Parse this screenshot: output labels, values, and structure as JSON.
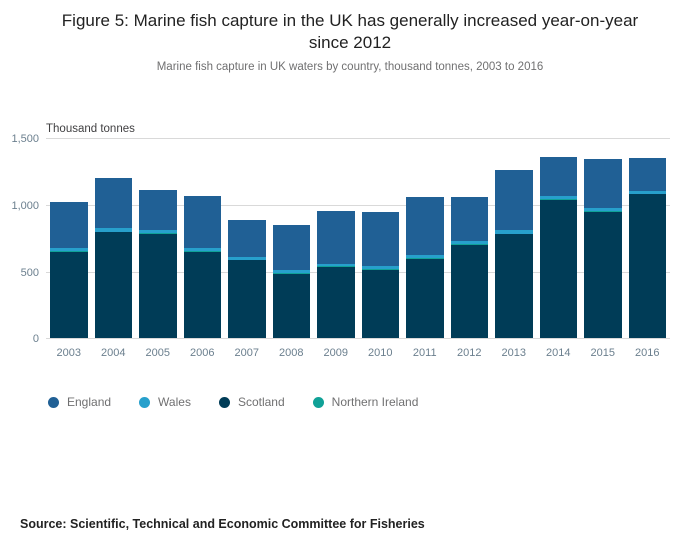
{
  "title": "Figure 5: Marine fish capture in the UK has generally increased year-on-year since 2012",
  "subtitle": "Marine fish capture in UK waters by country, thousand tonnes, 2003 to 2016",
  "source": "Source: Scientific, Technical and Economic Committee for Fisheries",
  "chart_data": {
    "type": "bar",
    "stacked": true,
    "title": "Figure 5: Marine fish capture in the UK has generally increased year-on-year since 2012",
    "subtitle": "Marine fish capture in UK waters by country, thousand tonnes, 2003 to 2016",
    "unit_label": "Thousand tonnes",
    "xlabel": "",
    "ylabel": "Thousand tonnes",
    "ylim": [
      0,
      1500
    ],
    "yticks": [
      "1,500",
      "1,000",
      "500",
      "0"
    ],
    "ytick_values": [
      1500,
      1000,
      500,
      0
    ],
    "grid": true,
    "legend_position": "bottom",
    "categories": [
      "2003",
      "2004",
      "2005",
      "2006",
      "2007",
      "2008",
      "2009",
      "2010",
      "2011",
      "2012",
      "2013",
      "2014",
      "2015",
      "2016"
    ],
    "series": [
      {
        "name": "Scotland",
        "color": "#003c57",
        "values": [
          650,
          795,
          785,
          650,
          585,
          485,
          535,
          515,
          595,
          700,
          780,
          1040,
          950,
          1080
        ]
      },
      {
        "name": "Northern Ireland",
        "color": "#10a197",
        "values": [
          5,
          5,
          5,
          5,
          5,
          5,
          5,
          5,
          5,
          5,
          5,
          5,
          5,
          5
        ]
      },
      {
        "name": "Wales",
        "color": "#27a0cc",
        "values": [
          20,
          25,
          20,
          20,
          20,
          20,
          20,
          20,
          25,
          25,
          30,
          20,
          20,
          20
        ]
      },
      {
        "name": "England",
        "color": "#206095",
        "values": [
          350,
          380,
          305,
          390,
          275,
          340,
          395,
          405,
          435,
          330,
          445,
          295,
          370,
          250
        ]
      }
    ],
    "legend": [
      {
        "name": "England",
        "color": "#206095"
      },
      {
        "name": "Wales",
        "color": "#27a0cc"
      },
      {
        "name": "Scotland",
        "color": "#003c57"
      },
      {
        "name": "Northern Ireland",
        "color": "#10a197"
      }
    ]
  }
}
